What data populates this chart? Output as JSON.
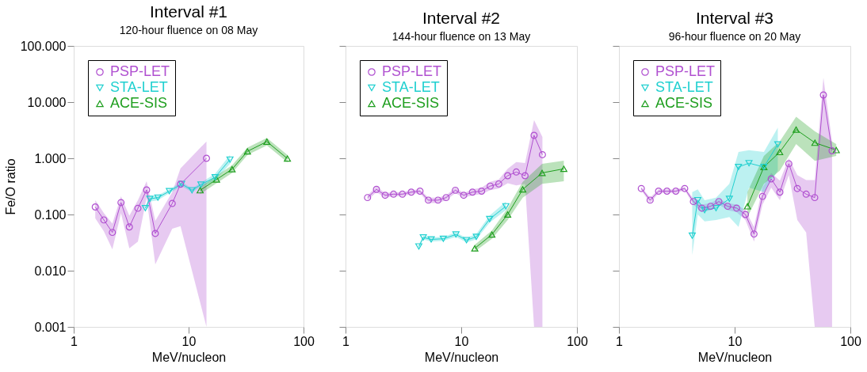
{
  "chart_data": [
    {
      "type": "line",
      "title": "Interval #1",
      "subtitle": "120-hour fluence on 08 May",
      "xlabel": "MeV/nucleon",
      "ylabel": "Fe/O ratio",
      "log": "xy",
      "xlim": [
        1,
        100
      ],
      "xticks": [
        1,
        10,
        100
      ],
      "ylim": [
        0.001,
        100
      ],
      "yticks": [
        {
          "value": 0.001,
          "label": "0.001"
        },
        {
          "value": 0.01,
          "label": "0.010"
        },
        {
          "value": 0.1,
          "label": "0.100"
        },
        {
          "value": 1,
          "label": "1.000"
        },
        {
          "value": 10,
          "label": "10.000"
        },
        {
          "value": 100,
          "label": "100.000"
        }
      ],
      "legend": "top left",
      "series": [
        {
          "name": "PSP-LET",
          "color": "#b050d0",
          "marker": "circle",
          "x": [
            1.54,
            1.83,
            2.17,
            2.58,
            3.05,
            3.62,
            4.31,
            5.13,
            7.2,
            8.5,
            14.3
          ],
          "values": [
            0.136,
            0.08,
            0.048,
            0.163,
            0.06,
            0.129,
            0.273,
            0.046,
            0.157,
            0.346,
            1.0
          ],
          "lower": [
            0.086,
            0.05,
            0.024,
            0.106,
            0.025,
            0.033,
            0.2,
            0.013,
            0.056,
            0.062,
            0.001
          ],
          "upper": [
            0.18,
            0.106,
            0.069,
            0.21,
            0.095,
            0.18,
            0.39,
            0.077,
            0.25,
            0.66,
            2.0
          ]
        },
        {
          "name": "STA-LET",
          "color": "#20d0d0",
          "marker": "triangle-down",
          "x": [
            4.2,
            4.6,
            5.4,
            6.8,
            8.7,
            10.7,
            12.8,
            17.0,
            22.9
          ],
          "values": [
            0.13,
            0.19,
            0.2,
            0.26,
            0.35,
            0.27,
            0.34,
            0.46,
            0.95
          ],
          "lower": [
            0.12,
            0.17,
            0.18,
            0.24,
            0.32,
            0.25,
            0.31,
            0.4,
            0.8
          ],
          "upper": [
            0.14,
            0.21,
            0.22,
            0.28,
            0.38,
            0.29,
            0.37,
            0.53,
            1.15
          ]
        },
        {
          "name": "ACE-SIS",
          "color": "#1e9e1e",
          "marker": "triangle",
          "x": [
            12.6,
            17.5,
            23.9,
            32.5,
            48,
            72.4
          ],
          "values": [
            0.27,
            0.42,
            0.64,
            1.33,
            1.98,
            0.99
          ],
          "lower": [
            0.23,
            0.36,
            0.55,
            1.15,
            1.7,
            0.85
          ],
          "upper": [
            0.31,
            0.49,
            0.75,
            1.55,
            2.3,
            1.15
          ]
        }
      ]
    },
    {
      "type": "line",
      "title": "Interval #2",
      "subtitle": "144-hour fluence on 13 May",
      "xlabel": "MeV/nucleon",
      "log": "xy",
      "xlim": [
        1,
        100
      ],
      "xticks": [
        1,
        10,
        100
      ],
      "ylim": [
        0.001,
        100
      ],
      "yticks": [
        0.001,
        0.01,
        0.1,
        1,
        10,
        100
      ],
      "tick_labels": "x",
      "legend": "top left",
      "series": [
        {
          "name": "PSP-LET",
          "color": "#b050d0",
          "marker": "circle",
          "x": [
            1.55,
            1.85,
            2.2,
            2.6,
            3.1,
            3.7,
            4.4,
            5.2,
            6.3,
            7.4,
            8.9,
            10.5,
            12.5,
            15.0,
            17.8,
            21.1,
            25.2,
            29.9,
            35.6,
            42.6,
            50.3
          ],
          "values": [
            0.2,
            0.28,
            0.22,
            0.23,
            0.23,
            0.25,
            0.26,
            0.18,
            0.18,
            0.2,
            0.27,
            0.22,
            0.25,
            0.26,
            0.32,
            0.35,
            0.49,
            0.57,
            0.49,
            2.56,
            1.16
          ],
          "lower": [
            0.18,
            0.25,
            0.2,
            0.21,
            0.21,
            0.23,
            0.24,
            0.16,
            0.16,
            0.18,
            0.24,
            0.2,
            0.22,
            0.23,
            0.27,
            0.29,
            0.36,
            0.33,
            0.35,
            0.001,
            0.001
          ],
          "upper": [
            0.22,
            0.31,
            0.24,
            0.25,
            0.25,
            0.27,
            0.28,
            0.2,
            0.2,
            0.22,
            0.3,
            0.24,
            0.28,
            0.3,
            0.38,
            0.42,
            0.65,
            0.86,
            0.82,
            4.8,
            2.4
          ]
        },
        {
          "name": "STA-LET",
          "color": "#20d0d0",
          "marker": "triangle-down",
          "x": [
            4.3,
            4.7,
            5.5,
            7.0,
            9.0,
            11.1,
            13.5,
            17.6,
            24.3
          ],
          "values": [
            0.027,
            0.039,
            0.036,
            0.037,
            0.044,
            0.035,
            0.04,
            0.083,
            0.14
          ],
          "lower": [
            0.025,
            0.036,
            0.033,
            0.034,
            0.04,
            0.032,
            0.036,
            0.072,
            0.12
          ],
          "upper": [
            0.029,
            0.042,
            0.039,
            0.04,
            0.048,
            0.038,
            0.045,
            0.096,
            0.17
          ]
        },
        {
          "name": "ACE-SIS",
          "color": "#1e9e1e",
          "marker": "triangle",
          "x": [
            13.1,
            18.4,
            25.2,
            34,
            50,
            77
          ],
          "values": [
            0.025,
            0.044,
            0.1,
            0.28,
            0.55,
            0.65
          ],
          "lower": [
            0.022,
            0.037,
            0.08,
            0.2,
            0.35,
            0.39
          ],
          "upper": [
            0.029,
            0.052,
            0.13,
            0.38,
            0.8,
            0.91
          ]
        }
      ]
    },
    {
      "type": "line",
      "title": "Interval #3",
      "subtitle": "96-hour fluence on 20 May",
      "xlabel": "MeV/nucleon",
      "log": "xy",
      "xlim": [
        1,
        100
      ],
      "xticks": [
        1,
        10,
        100
      ],
      "ylim": [
        0.001,
        100
      ],
      "yticks": [
        0.001,
        0.01,
        0.1,
        1,
        10,
        100
      ],
      "tick_labels": "x",
      "legend": "top left",
      "series": [
        {
          "name": "PSP-LET",
          "color": "#b050d0",
          "marker": "circle",
          "x": [
            1.56,
            1.86,
            2.2,
            2.6,
            3.1,
            3.7,
            4.4,
            5.2,
            6.2,
            7.3,
            8.7,
            10.4,
            12.4,
            14.7,
            17.4,
            20.7,
            24.6,
            29.4,
            34.8,
            41.5,
            49.2,
            58.5,
            69.5
          ],
          "values": [
            0.29,
            0.18,
            0.26,
            0.26,
            0.26,
            0.29,
            0.17,
            0.13,
            0.14,
            0.17,
            0.14,
            0.13,
            0.1,
            0.045,
            0.21,
            0.43,
            0.25,
            0.8,
            0.29,
            0.23,
            0.2,
            13.4,
            1.36
          ],
          "lower": [
            0.27,
            0.16,
            0.24,
            0.24,
            0.24,
            0.27,
            0.15,
            0.11,
            0.12,
            0.15,
            0.12,
            0.11,
            0.08,
            0.033,
            0.15,
            0.3,
            0.18,
            0.5,
            0.08,
            0.048,
            0.001,
            0.001,
            0.001
          ],
          "upper": [
            0.31,
            0.2,
            0.28,
            0.28,
            0.28,
            0.31,
            0.19,
            0.15,
            0.16,
            0.19,
            0.16,
            0.15,
            0.12,
            0.06,
            0.3,
            0.55,
            0.4,
            1.0,
            0.5,
            0.41,
            0.41,
            27,
            2.0
          ]
        },
        {
          "name": "STA-LET",
          "color": "#20d0d0",
          "marker": "triangle-down",
          "x": [
            4.3,
            4.8,
            5.5,
            6.9,
            9.0,
            10.8,
            13.3,
            17.9,
            23.6
          ],
          "values": [
            0.042,
            0.18,
            0.12,
            0.13,
            0.19,
            0.7,
            0.82,
            0.7,
            1.77
          ],
          "lower": [
            0.019,
            0.1,
            0.075,
            0.08,
            0.09,
            0.06,
            0.3,
            0.25,
            0.6
          ],
          "upper": [
            0.25,
            0.28,
            0.18,
            0.2,
            0.35,
            1.3,
            1.4,
            1.3,
            3.5
          ]
        },
        {
          "name": "ACE-SIS",
          "color": "#1e9e1e",
          "marker": "triangle",
          "x": [
            12.9,
            17.9,
            24.5,
            34,
            49.4,
            75.5
          ],
          "values": [
            0.14,
            0.7,
            1.29,
            3.24,
            1.89,
            1.4
          ],
          "lower": [
            0.09,
            0.35,
            0.6,
            1.8,
            0.9,
            1.1
          ],
          "upper": [
            0.25,
            1.1,
            2.0,
            5.5,
            3.0,
            1.8
          ]
        }
      ]
    }
  ]
}
